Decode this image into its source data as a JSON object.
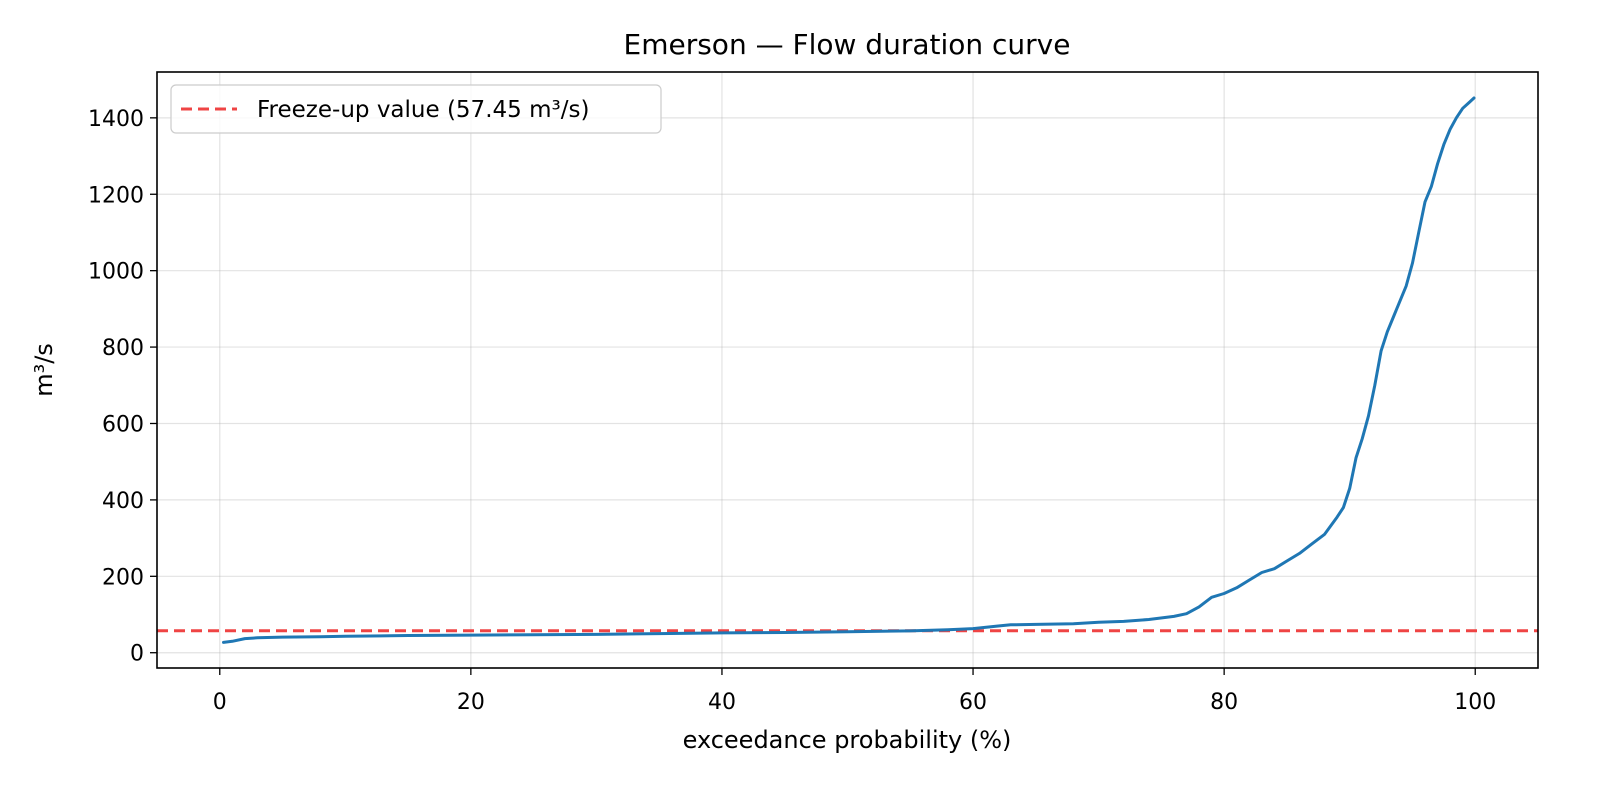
{
  "chart_data": {
    "type": "line",
    "title": "Emerson — Flow duration curve",
    "xlabel": "exceedance probability (%)",
    "ylabel": "m³/s",
    "xlim": [
      -5,
      105
    ],
    "ylim": [
      -40,
      1520
    ],
    "xticks": [
      0,
      20,
      40,
      60,
      80,
      100
    ],
    "yticks": [
      0,
      200,
      400,
      600,
      800,
      1000,
      1200,
      1400
    ],
    "grid": true,
    "legend_position": "top-left",
    "series": [
      {
        "color": "#1f77b4",
        "x": [
          0.3,
          1.0,
          2.0,
          3.0,
          5.0,
          8.0,
          10.0,
          15.0,
          20.0,
          25.0,
          30.0,
          35.0,
          40.0,
          45.0,
          50.0,
          55.0,
          58.0,
          60.0,
          62.0,
          63.0,
          65.0,
          68.0,
          70.0,
          72.0,
          74.0,
          76.0,
          77.0,
          78.0,
          79.0,
          80.0,
          81.0,
          82.0,
          83.0,
          84.0,
          85.0,
          86.0,
          87.0,
          88.0,
          89.0,
          89.5,
          90.0,
          90.5,
          91.0,
          91.5,
          92.0,
          92.5,
          93.0,
          93.5,
          94.0,
          94.5,
          95.0,
          95.5,
          96.0,
          96.5,
          97.0,
          97.5,
          98.0,
          98.5,
          99.0,
          99.5,
          99.9
        ],
        "y": [
          27,
          30,
          37,
          39,
          41,
          42,
          43,
          45,
          46,
          47,
          48,
          50,
          52,
          53,
          55,
          57,
          60,
          63,
          70,
          73,
          74,
          76,
          80,
          82,
          87,
          95,
          102,
          120,
          145,
          155,
          170,
          190,
          210,
          220,
          240,
          260,
          285,
          310,
          355,
          380,
          430,
          510,
          560,
          620,
          700,
          790,
          840,
          880,
          920,
          960,
          1020,
          1100,
          1180,
          1220,
          1280,
          1330,
          1370,
          1400,
          1425,
          1440,
          1452
        ]
      }
    ],
    "reference_lines": [
      {
        "label": "Freeze-up value (57.45 m³/s)",
        "y": 57.45,
        "color": "#ef4444",
        "style": "dashed"
      }
    ]
  }
}
